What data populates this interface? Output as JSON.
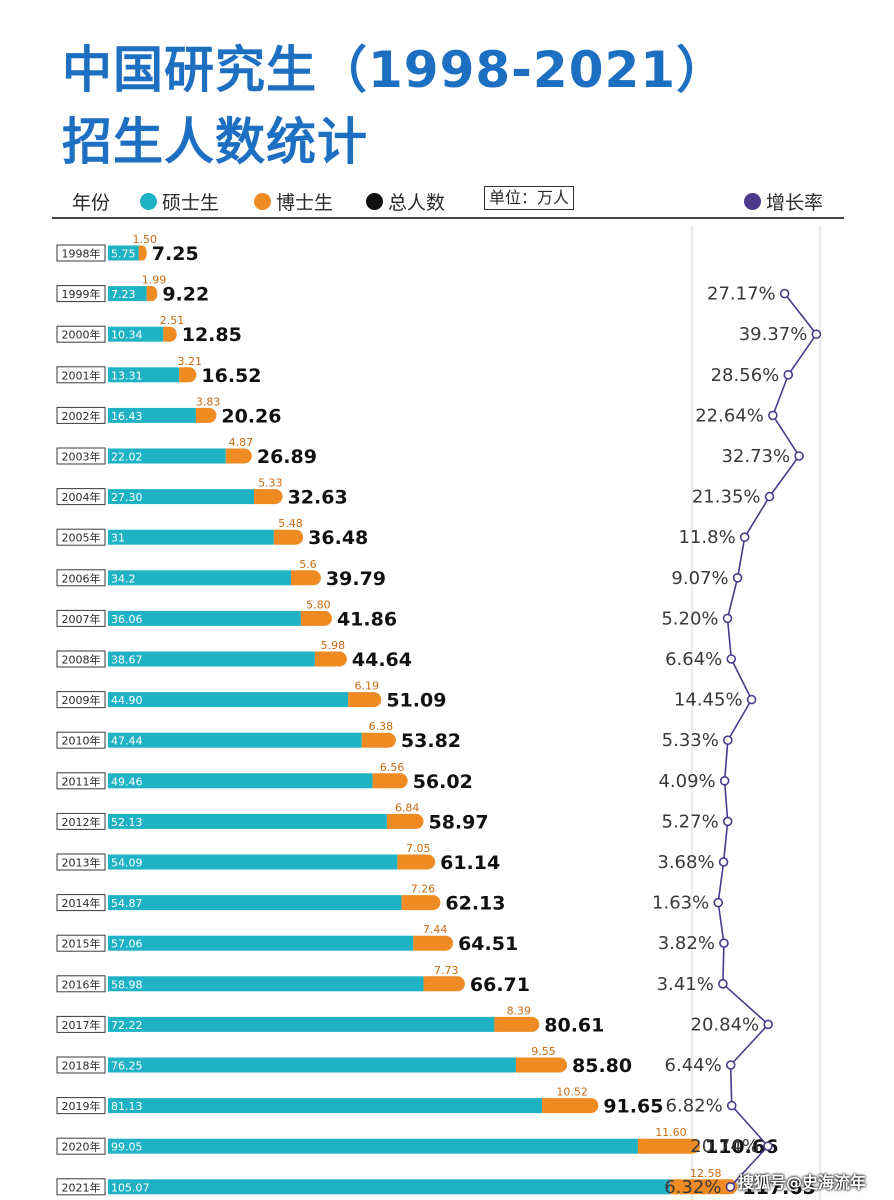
{
  "title_line1": "中国研究生（1998-2021）",
  "title_line2": "招生人数统计",
  "legend": {
    "year": "年份",
    "master": "硕士生",
    "phd": "博士生",
    "total": "总人数",
    "unit": "单位：万人",
    "growth": "增长率"
  },
  "watermark": "搜狐号@史海流年",
  "colors": {
    "title": "#1d6fc2",
    "master": "#1fb2c4",
    "phd": "#ef8b22",
    "total": "#111111",
    "growth": "#4b3a8c"
  },
  "chart_data": {
    "type": "bar",
    "stacked": true,
    "orientation": "horizontal",
    "categories": [
      "1998年",
      "1999年",
      "2000年",
      "2001年",
      "2002年",
      "2003年",
      "2004年",
      "2005年",
      "2006年",
      "2007年",
      "2008年",
      "2009年",
      "2010年",
      "2011年",
      "2012年",
      "2013年",
      "2014年",
      "2015年",
      "2016年",
      "2017年",
      "2018年",
      "2019年",
      "2020年",
      "2021年"
    ],
    "series": [
      {
        "name": "硕士生",
        "labels": [
          "5.75",
          "7.23",
          "10.34",
          "13.31",
          "16.43",
          "22.02",
          "27.30",
          "31",
          "34.2",
          "36.06",
          "38.67",
          "44.90",
          "47.44",
          "49.46",
          "52.13",
          "54.09",
          "54.87",
          "57.06",
          "58.98",
          "72.22",
          "76.25",
          "81.13",
          "99.05",
          "105.07"
        ],
        "values": [
          5.75,
          7.23,
          10.34,
          13.31,
          16.43,
          22.02,
          27.3,
          31,
          34.2,
          36.06,
          38.67,
          44.9,
          47.44,
          49.46,
          52.13,
          54.09,
          54.87,
          57.06,
          58.98,
          72.22,
          76.25,
          81.13,
          99.05,
          105.07
        ]
      },
      {
        "name": "博士生",
        "labels": [
          "1.50",
          "1.99",
          "2.51",
          "3.21",
          "3.83",
          "4.87",
          "5.33",
          "5.48",
          "5.6",
          "5.80",
          "5.98",
          "6.19",
          "6.38",
          "6.56",
          "6.84",
          "7.05",
          "7.26",
          "7.44",
          "7.73",
          "8.39",
          "9.55",
          "10.52",
          "11.60",
          "12.58"
        ],
        "values": [
          1.5,
          1.99,
          2.51,
          3.21,
          3.83,
          4.87,
          5.33,
          5.48,
          5.6,
          5.8,
          5.98,
          6.19,
          6.38,
          6.56,
          6.84,
          7.05,
          7.26,
          7.44,
          7.73,
          8.39,
          9.55,
          10.52,
          11.6,
          12.58
        ]
      }
    ],
    "totals": {
      "name": "总人数",
      "labels": [
        "7.25",
        "9.22",
        "12.85",
        "16.52",
        "20.26",
        "26.89",
        "32.63",
        "36.48",
        "39.79",
        "41.86",
        "44.64",
        "51.09",
        "53.82",
        "56.02",
        "58.97",
        "61.14",
        "62.13",
        "64.51",
        "66.71",
        "80.61",
        "85.80",
        "91.65",
        "110.66",
        "117.65"
      ]
    },
    "growth": {
      "name": "增长率",
      "labels": [
        "",
        "27.17%",
        "39.37%",
        "28.56%",
        "22.64%",
        "32.73%",
        "21.35%",
        "11.8%",
        "9.07%",
        "5.20%",
        "6.64%",
        "14.45%",
        "5.33%",
        "4.09%",
        "5.27%",
        "3.68%",
        "1.63%",
        "3.82%",
        "3.41%",
        "20.84%",
        "6.44%",
        "6.82%",
        "20.74%",
        "6.32%"
      ],
      "values": [
        null,
        27.17,
        39.37,
        28.56,
        22.64,
        32.73,
        21.35,
        11.8,
        9.07,
        5.2,
        6.64,
        14.45,
        5.33,
        4.09,
        5.27,
        3.68,
        1.63,
        3.82,
        3.41,
        20.84,
        6.44,
        6.82,
        20.74,
        6.32
      ]
    },
    "unit": "万人"
  }
}
